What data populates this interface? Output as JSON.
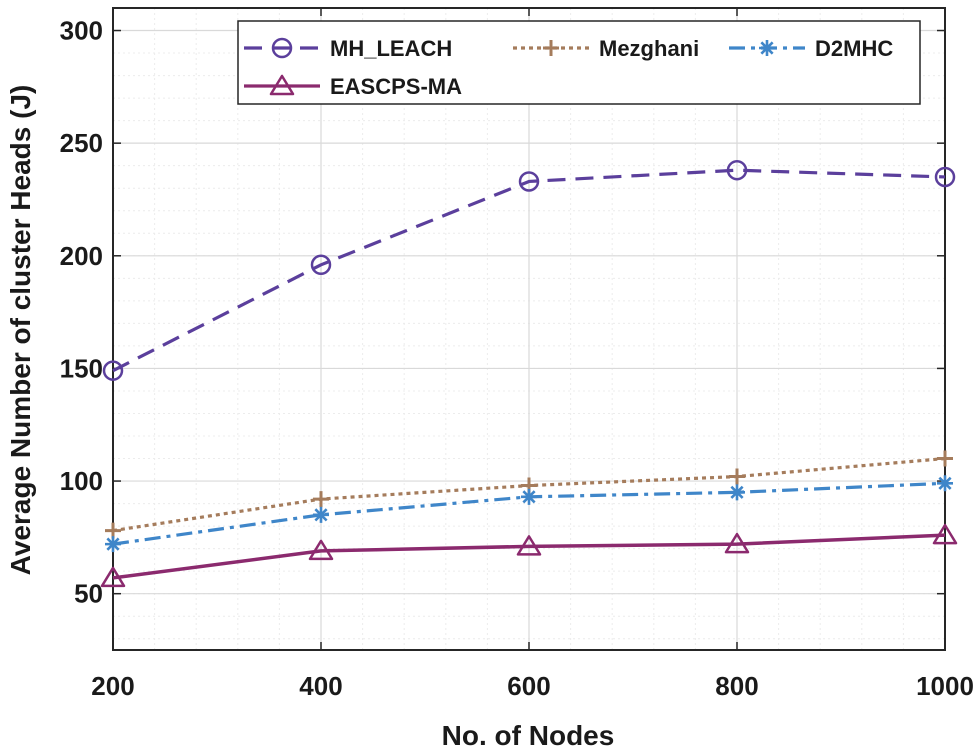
{
  "chart_data": {
    "type": "line",
    "xlabel": "No. of Nodes",
    "ylabel": "Average Number of cluster Heads (J)",
    "x": [
      200,
      400,
      600,
      800,
      1000
    ],
    "xlim": [
      200,
      1000
    ],
    "ylim": [
      25,
      310
    ],
    "xticks": [
      200,
      400,
      600,
      800,
      1000
    ],
    "yticks": [
      50,
      100,
      150,
      200,
      250,
      300
    ],
    "grid": true,
    "minor_grid": true,
    "legend_position": "top-right",
    "series": [
      {
        "name": "MH_LEACH",
        "values": [
          149,
          196,
          233,
          238,
          235
        ],
        "color": "#5b3f9c",
        "dash": "dashed",
        "marker": "circle"
      },
      {
        "name": "Mezghani",
        "values": [
          78,
          92,
          98,
          102,
          110
        ],
        "color": "#a57c5c",
        "dash": "dotted",
        "marker": "plus"
      },
      {
        "name": "D2MHC",
        "values": [
          72,
          85,
          93,
          95,
          99
        ],
        "color": "#3f86c9",
        "dash": "dashdot",
        "marker": "asterisk"
      },
      {
        "name": "EASCPS-MA",
        "values": [
          57,
          69,
          71,
          72,
          76
        ],
        "color": "#8b2a6e",
        "dash": "solid",
        "marker": "triangle"
      }
    ]
  }
}
